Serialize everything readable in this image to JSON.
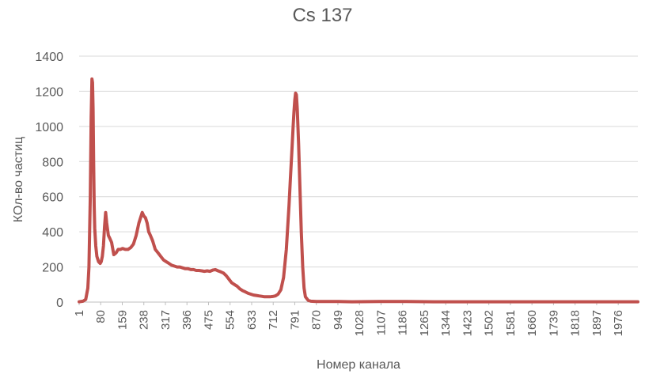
{
  "chart_data": {
    "type": "line",
    "title": "Cs 137",
    "xlabel": "Номер канала",
    "ylabel": "КОл-во частиц",
    "ylim": [
      0,
      1400
    ],
    "y_ticks": [
      0,
      200,
      400,
      600,
      800,
      1000,
      1200,
      1400
    ],
    "x_tick_labels": [
      "1",
      "80",
      "159",
      "238",
      "317",
      "396",
      "475",
      "554",
      "633",
      "712",
      "791",
      "870",
      "949",
      "1028",
      "1107",
      "1186",
      "1265",
      "1344",
      "1423",
      "1502",
      "1581",
      "1660",
      "1739",
      "1818",
      "1897",
      "1976"
    ],
    "xlim": [
      1,
      2048
    ],
    "grid": true,
    "legend": "none",
    "color": "#c0504d",
    "series": [
      {
        "x": [
          1,
          15,
          25,
          33,
          37,
          42,
          45,
          48,
          50,
          52,
          54,
          56,
          58,
          62,
          66,
          72,
          78,
          82,
          86,
          90,
          94,
          98,
          102,
          108,
          114,
          120,
          128,
          136,
          144,
          152,
          160,
          170,
          180,
          190,
          200,
          210,
          220,
          226,
          232,
          238,
          244,
          250,
          256,
          262,
          270,
          280,
          290,
          300,
          310,
          320,
          330,
          340,
          350,
          360,
          370,
          380,
          390,
          400,
          410,
          420,
          430,
          440,
          450,
          460,
          470,
          480,
          490,
          500,
          510,
          520,
          530,
          540,
          550,
          560,
          570,
          580,
          590,
          600,
          610,
          620,
          630,
          640,
          650,
          660,
          670,
          680,
          690,
          700,
          710,
          720,
          730,
          740,
          750,
          760,
          770,
          775,
          780,
          785,
          788,
          791,
          794,
          797,
          800,
          805,
          810,
          815,
          820,
          825,
          830,
          840,
          850,
          870,
          900,
          950,
          1000,
          1100,
          1200,
          1300,
          1400,
          1500,
          1600,
          1700,
          1800,
          1900,
          2000,
          2048
        ],
        "y": [
          2,
          5,
          15,
          80,
          200,
          600,
          1050,
          1270,
          1250,
          1100,
          800,
          550,
          420,
          320,
          260,
          230,
          220,
          230,
          260,
          320,
          430,
          510,
          450,
          380,
          360,
          340,
          270,
          280,
          300,
          300,
          305,
          300,
          300,
          310,
          330,
          380,
          450,
          480,
          510,
          490,
          480,
          450,
          400,
          380,
          350,
          300,
          280,
          260,
          240,
          230,
          220,
          210,
          205,
          200,
          200,
          195,
          190,
          190,
          185,
          185,
          180,
          180,
          178,
          175,
          178,
          175,
          182,
          185,
          178,
          172,
          165,
          150,
          130,
          110,
          100,
          90,
          75,
          65,
          58,
          50,
          45,
          40,
          38,
          35,
          33,
          30,
          30,
          30,
          32,
          35,
          45,
          70,
          140,
          300,
          550,
          700,
          850,
          1000,
          1080,
          1150,
          1190,
          1180,
          1100,
          900,
          650,
          400,
          200,
          80,
          30,
          10,
          5,
          3,
          3,
          3,
          2,
          3,
          3,
          2,
          2,
          2,
          2,
          2,
          2,
          2,
          2,
          2
        ]
      }
    ]
  }
}
